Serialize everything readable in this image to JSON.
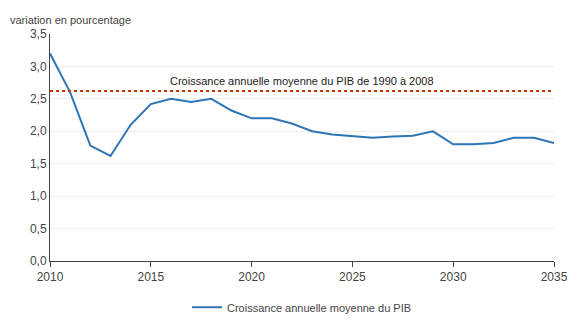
{
  "chart_data": {
    "type": "line",
    "ylabel": "variation en pourcentage",
    "x": [
      2010,
      2011,
      2012,
      2013,
      2014,
      2015,
      2016,
      2017,
      2018,
      2019,
      2020,
      2021,
      2022,
      2023,
      2024,
      2025,
      2026,
      2027,
      2028,
      2029,
      2030,
      2031,
      2032,
      2033,
      2034,
      2035
    ],
    "series": [
      {
        "name": "Croissance annuelle moyenne du PIB",
        "color": "#2E75B6",
        "values": [
          3.2,
          2.6,
          1.78,
          1.62,
          2.1,
          2.42,
          2.5,
          2.45,
          2.5,
          2.32,
          2.2,
          2.2,
          2.12,
          2.0,
          1.95,
          1.92,
          1.9,
          1.92,
          1.93,
          2.0,
          1.8,
          1.8,
          1.82,
          1.9,
          1.9,
          1.82
        ]
      }
    ],
    "reference_line": {
      "value": 2.62,
      "label": "Croissance annuelle moyenne du PIB de 1990 à 2008",
      "color": "#CC3300",
      "line_style": "dotted"
    },
    "xlim": [
      2010,
      2035
    ],
    "xticks": [
      2010,
      2015,
      2020,
      2025,
      2030,
      2035
    ],
    "ylim": [
      0,
      3.5
    ],
    "yticks": [
      {
        "value": 0.0,
        "label": "0,0"
      },
      {
        "value": 0.5,
        "label": "0,5"
      },
      {
        "value": 1.0,
        "label": "1,0"
      },
      {
        "value": 1.5,
        "label": "1,5"
      },
      {
        "value": 2.0,
        "label": "2,0"
      },
      {
        "value": 2.5,
        "label": "2,5"
      },
      {
        "value": 3.0,
        "label": "3,0"
      },
      {
        "value": 3.5,
        "label": "3,5"
      }
    ],
    "grid": "y",
    "legend": "bottom"
  }
}
